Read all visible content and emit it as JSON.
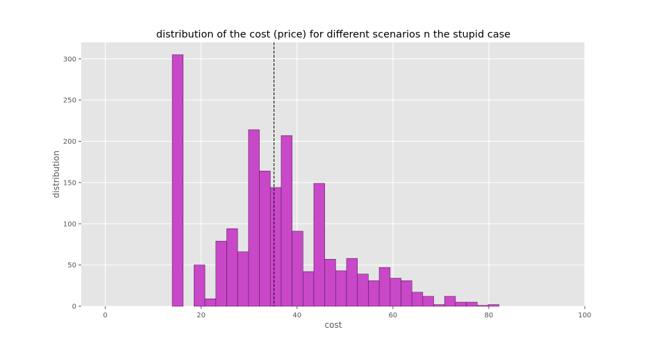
{
  "chart_data": {
    "type": "bar",
    "title": "distribution of the cost (price) for different scenarios n the stupid case",
    "xlabel": "cost",
    "ylabel": "distribution",
    "xlim": [
      -5,
      100
    ],
    "ylim": [
      0,
      320
    ],
    "xticks": [
      0,
      20,
      40,
      60,
      80,
      100
    ],
    "yticks": [
      0,
      50,
      100,
      150,
      200,
      250,
      300
    ],
    "grid": true,
    "bar_color": "#c63fc6",
    "bar_edge_color": "#5a1a5a",
    "background_color": "#e5e5e5",
    "grid_color": "#ffffff",
    "marker_line": {
      "x": 35.2,
      "style": "dashed",
      "color": "#000000"
    },
    "bins": [
      {
        "x0": 13.98,
        "x1": 16.25,
        "count": 305
      },
      {
        "x0": 18.52,
        "x1": 20.79,
        "count": 50
      },
      {
        "x0": 20.79,
        "x1": 23.07,
        "count": 9
      },
      {
        "x0": 23.07,
        "x1": 25.34,
        "count": 79
      },
      {
        "x0": 25.34,
        "x1": 27.61,
        "count": 94
      },
      {
        "x0": 27.61,
        "x1": 29.88,
        "count": 66
      },
      {
        "x0": 29.88,
        "x1": 32.15,
        "count": 214
      },
      {
        "x0": 32.15,
        "x1": 34.43,
        "count": 164
      },
      {
        "x0": 34.43,
        "x1": 36.7,
        "count": 144
      },
      {
        "x0": 36.7,
        "x1": 38.97,
        "count": 207
      },
      {
        "x0": 38.97,
        "x1": 41.24,
        "count": 91
      },
      {
        "x0": 41.24,
        "x1": 43.51,
        "count": 42
      },
      {
        "x0": 43.51,
        "x1": 45.78,
        "count": 149
      },
      {
        "x0": 45.78,
        "x1": 48.06,
        "count": 57
      },
      {
        "x0": 48.06,
        "x1": 50.33,
        "count": 43
      },
      {
        "x0": 50.33,
        "x1": 52.6,
        "count": 58
      },
      {
        "x0": 52.6,
        "x1": 54.87,
        "count": 39
      },
      {
        "x0": 54.87,
        "x1": 57.14,
        "count": 31
      },
      {
        "x0": 57.14,
        "x1": 59.42,
        "count": 47
      },
      {
        "x0": 59.42,
        "x1": 61.69,
        "count": 34
      },
      {
        "x0": 61.69,
        "x1": 63.96,
        "count": 31
      },
      {
        "x0": 63.96,
        "x1": 66.23,
        "count": 17
      },
      {
        "x0": 66.23,
        "x1": 68.5,
        "count": 12
      },
      {
        "x0": 68.5,
        "x1": 70.77,
        "count": 2
      },
      {
        "x0": 70.77,
        "x1": 73.05,
        "count": 12
      },
      {
        "x0": 73.05,
        "x1": 75.32,
        "count": 5
      },
      {
        "x0": 75.32,
        "x1": 77.59,
        "count": 5
      },
      {
        "x0": 77.59,
        "x1": 79.86,
        "count": 1
      },
      {
        "x0": 79.86,
        "x1": 82.13,
        "count": 2
      }
    ]
  }
}
